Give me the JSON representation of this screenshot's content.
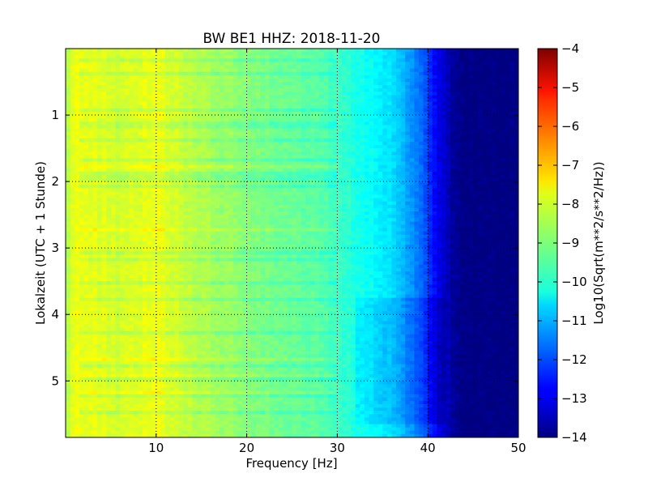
{
  "chart_data": {
    "type": "heatmap",
    "title": "BW BE1 HHZ: 2018-11-20",
    "xlabel": "Frequency [Hz]",
    "ylabel": "Lokalzeit (UTC + 1 Stunde)",
    "xlim": [
      0,
      50
    ],
    "ylim": [
      5.85,
      0
    ],
    "x_ticks": [
      10,
      20,
      30,
      40,
      50
    ],
    "y_ticks": [
      1,
      2,
      3,
      4,
      5
    ],
    "grid": true,
    "colormap": "jet",
    "colorbar": {
      "label": "Log10(Sqrt(m**2/s**2/Hz))",
      "range": [
        -14,
        -4
      ],
      "ticks": [
        -4,
        -5,
        -6,
        -7,
        -8,
        -9,
        -10,
        -11,
        -12,
        -13,
        -14
      ]
    },
    "frequency_profile": {
      "frequency_hz": [
        0,
        1,
        3,
        6,
        10,
        13,
        16,
        20,
        25,
        28,
        30,
        32,
        34,
        36,
        37,
        38,
        39,
        40,
        41,
        42,
        43,
        44,
        50
      ],
      "log10_amplitude": [
        -8.6,
        -7.9,
        -8.0,
        -8.2,
        -7.9,
        -8.3,
        -8.6,
        -8.9,
        -9.2,
        -9.4,
        -9.6,
        -10.0,
        -10.2,
        -10.6,
        -10.9,
        -11.2,
        -11.6,
        -12.2,
        -12.8,
        -13.4,
        -13.8,
        -14.0,
        -14.0
      ]
    }
  }
}
